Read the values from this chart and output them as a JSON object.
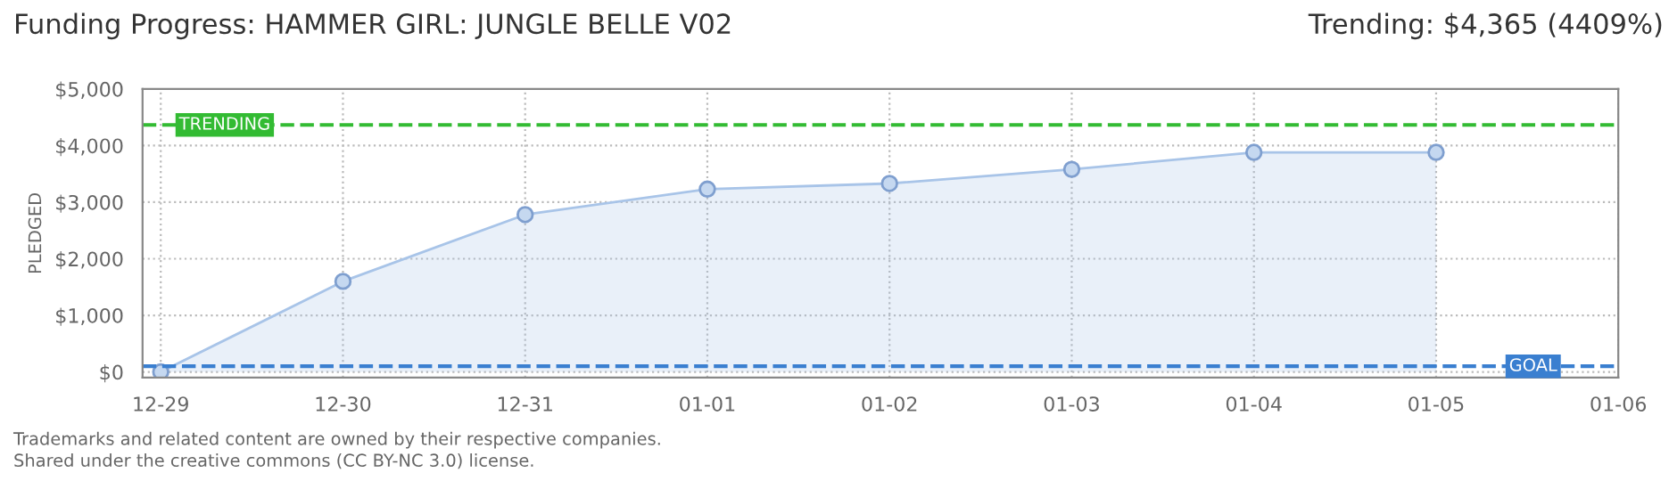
{
  "chart_data": {
    "type": "area",
    "title": "Funding Progress: HAMMER GIRL: JUNGLE BELLE V02",
    "ylabel": "PLEDGED",
    "categories": [
      "12-29",
      "12-30",
      "12-31",
      "01-01",
      "01-02",
      "01-03",
      "01-04",
      "01-05",
      "01-06"
    ],
    "series": [
      {
        "color": "#a8c4e8",
        "values": [
          0,
          1600,
          2780,
          3230,
          3330,
          3580,
          3880,
          3880,
          null
        ]
      }
    ],
    "ylim": [
      -100,
      5000
    ],
    "yticks": [
      {
        "value": 0,
        "label": "$0"
      },
      {
        "value": 1000,
        "label": "$1,000"
      },
      {
        "value": 2000,
        "label": "$2,000"
      },
      {
        "value": 3000,
        "label": "$3,000"
      },
      {
        "value": 4000,
        "label": "$4,000"
      },
      {
        "value": 5000,
        "label": "$5,000"
      }
    ],
    "ref_lines": [
      {
        "axis": "y",
        "value": 4365,
        "label": "TRENDING",
        "color": "#33bb33",
        "line_style": "dashed"
      },
      {
        "axis": "y",
        "value": 100,
        "label": "GOAL",
        "color": "#3a7fd0",
        "line_style": "dashed"
      }
    ],
    "annotations": [
      "Trending: $4,365 (4409%)",
      "Trademarks and related content are owned by their respective companies.",
      "Shared under the creative commons (CC BY-NC 3.0) license."
    ],
    "grid": true,
    "marker": "circle",
    "line_style": "solid"
  }
}
